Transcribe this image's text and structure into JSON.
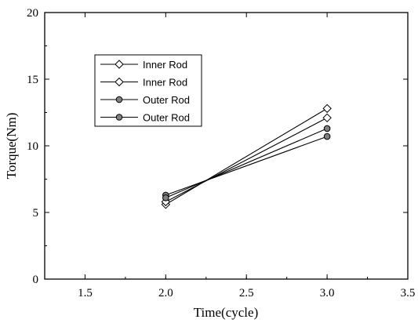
{
  "chart_data": {
    "type": "line",
    "xlabel": "Time(cycle)",
    "ylabel": "Torque(Nm)",
    "xlim": [
      1.25,
      3.5
    ],
    "ylim": [
      0,
      20
    ],
    "xticks": [
      1.5,
      2.0,
      2.5,
      3.0,
      3.5
    ],
    "xtick_labels": [
      "1.5",
      "2.0",
      "2.5",
      "3.0",
      "3.5"
    ],
    "yticks": [
      0,
      5,
      10,
      15,
      20
    ],
    "ytick_labels": [
      "0",
      "5",
      "10",
      "15",
      "20"
    ],
    "grid": false,
    "legend_position": "upper-left",
    "series": [
      {
        "name": "Inner Rod",
        "marker": "diamond-open",
        "x": [
          2.0,
          3.0
        ],
        "y": [
          5.6,
          12.8
        ]
      },
      {
        "name": "Inner Rod",
        "marker": "diamond-open",
        "x": [
          2.0,
          3.0
        ],
        "y": [
          5.8,
          12.1
        ]
      },
      {
        "name": "Outer Rod",
        "marker": "circle-filled",
        "x": [
          2.0,
          3.0
        ],
        "y": [
          6.3,
          10.7
        ]
      },
      {
        "name": "Outer Rod",
        "marker": "circle-filled",
        "x": [
          2.0,
          3.0
        ],
        "y": [
          6.1,
          11.3
        ]
      }
    ],
    "colors": {
      "line": "#000000",
      "filled_marker": "#808080"
    }
  }
}
